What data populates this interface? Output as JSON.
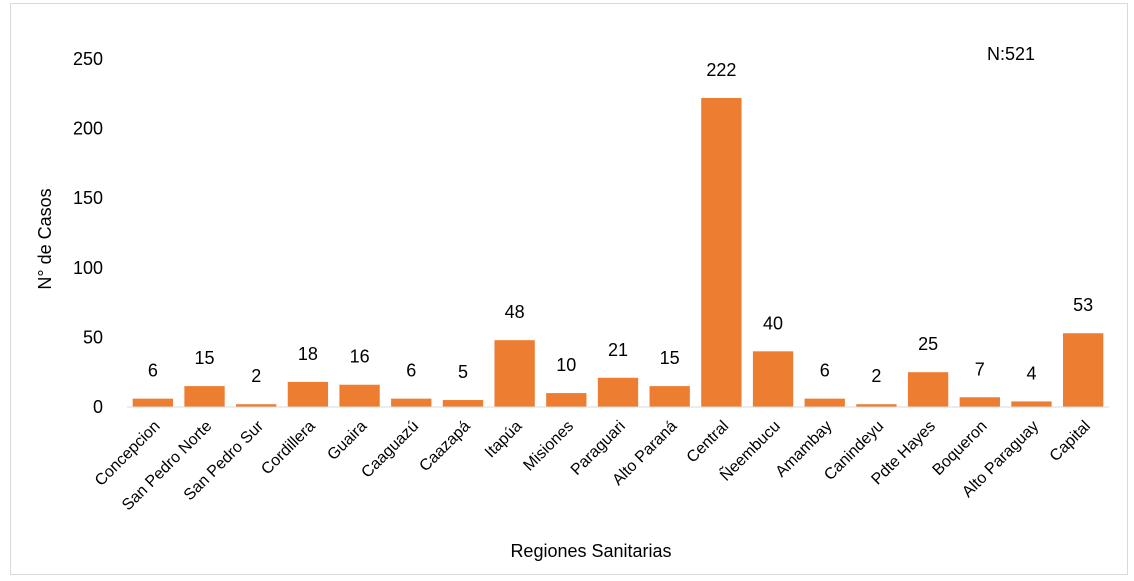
{
  "chart_data": {
    "type": "bar",
    "title": "",
    "xlabel": "Regiones Sanitarias",
    "ylabel": "N° de Casos",
    "annotation": "N:521",
    "ylim": [
      0,
      250
    ],
    "yticks": [
      0,
      50,
      100,
      150,
      200,
      250
    ],
    "grid": false,
    "bar_color": "#ED7D31",
    "categories": [
      "Concepcion",
      "San Pedro Norte",
      "San Pedro Sur",
      "Cordillera",
      "Guaira",
      "Caaguazú",
      "Caazapá",
      "Itapúa",
      "Misiones",
      "Paraguari",
      "Alto Paraná",
      "Central",
      "Ñeembucu",
      "Amambay",
      "Canindeyu",
      "Pdte Hayes",
      "Boqueron",
      "Alto Paraguay",
      "Capital"
    ],
    "values": [
      6,
      15,
      2,
      18,
      16,
      6,
      5,
      48,
      10,
      21,
      15,
      222,
      40,
      6,
      2,
      25,
      7,
      4,
      53
    ]
  }
}
